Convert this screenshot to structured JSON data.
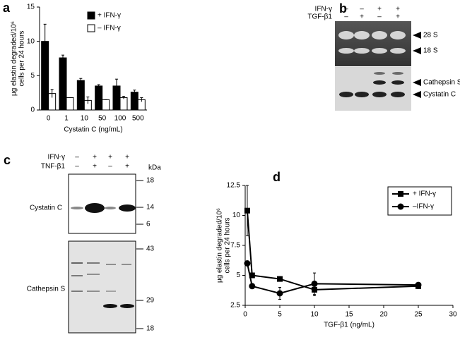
{
  "chart_data": [
    {
      "type": "bar",
      "panel_label": "a",
      "y_label": [
        "µg elastin degraded/10⁶",
        "cells per 24 hours"
      ],
      "x_label": "Cystatin C (ng/mL)",
      "categories": [
        "0",
        "1",
        "10",
        "50",
        "100",
        "500"
      ],
      "series": [
        {
          "name": "+ IFN-γ",
          "color": "#000000",
          "values": [
            10.0,
            7.6,
            4.3,
            3.5,
            3.5,
            2.6
          ],
          "errors": [
            2.5,
            0.4,
            0.3,
            0.2,
            1.0,
            0.3
          ]
        },
        {
          "name": "– IFN-γ",
          "color": "#ffffff",
          "values": [
            2.4,
            1.8,
            1.4,
            1.5,
            1.8,
            1.5
          ],
          "errors": [
            0.6,
            0,
            0.5,
            0,
            0.2,
            0.3
          ]
        }
      ],
      "ylim": [
        0,
        15
      ],
      "yticks": [
        0,
        5,
        10,
        15
      ],
      "legend": "upper right",
      "legend_frame": false
    },
    {
      "type": "line",
      "panel_label": "d",
      "y_label": [
        "µg elastin degraded/10⁶",
        "cells per 24 hours"
      ],
      "x_label": "TGF-β1 (ng/mL)",
      "x": [
        0.3,
        1,
        5,
        10,
        25
      ],
      "series": [
        {
          "name": "+ IFN-γ",
          "color": "#000000",
          "marker": "square",
          "values": [
            10.4,
            5.0,
            4.7,
            3.8,
            4.1
          ],
          "errors": [
            2.1,
            null,
            0.2,
            0.5,
            0.2
          ]
        },
        {
          "name": "–IFN-γ",
          "color": "#000000",
          "marker": "circle",
          "values": [
            6.0,
            4.1,
            3.5,
            4.3,
            4.2
          ],
          "errors": [
            null,
            null,
            0.5,
            0.9,
            0.2
          ]
        }
      ],
      "xlim": [
        0,
        30
      ],
      "xticks": [
        0,
        5,
        10,
        15,
        20,
        25,
        30
      ],
      "ylim": [
        2.5,
        12.5
      ],
      "yticks": [
        2.5,
        5,
        7.5,
        10,
        12.5
      ],
      "legend": "upper right",
      "legend_frame": true
    }
  ],
  "blots": [
    {
      "panel_label": "b",
      "rows": [
        {
          "label": "IFN-γ",
          "signs": [
            "–",
            "–",
            "+",
            "+"
          ]
        },
        {
          "label": "TGF-β1",
          "signs": [
            "–",
            "+",
            "–",
            "+"
          ]
        }
      ],
      "bands": [
        "28 S",
        "18 S",
        "Cathepsin S",
        "Cystatin C"
      ]
    },
    {
      "panel_label": "c",
      "rows": [
        {
          "label": "IFN-γ",
          "signs": [
            "–",
            "+",
            "+",
            "+"
          ]
        },
        {
          "label": "TNF-β1",
          "signs": [
            "–",
            "+",
            "–",
            "+"
          ]
        }
      ],
      "unit": "kDa",
      "sections": [
        {
          "label": "Cystatin C",
          "markers": [
            18,
            14,
            6
          ]
        },
        {
          "label": "Cathepsin S",
          "markers": [
            43,
            29,
            18
          ]
        }
      ]
    }
  ]
}
